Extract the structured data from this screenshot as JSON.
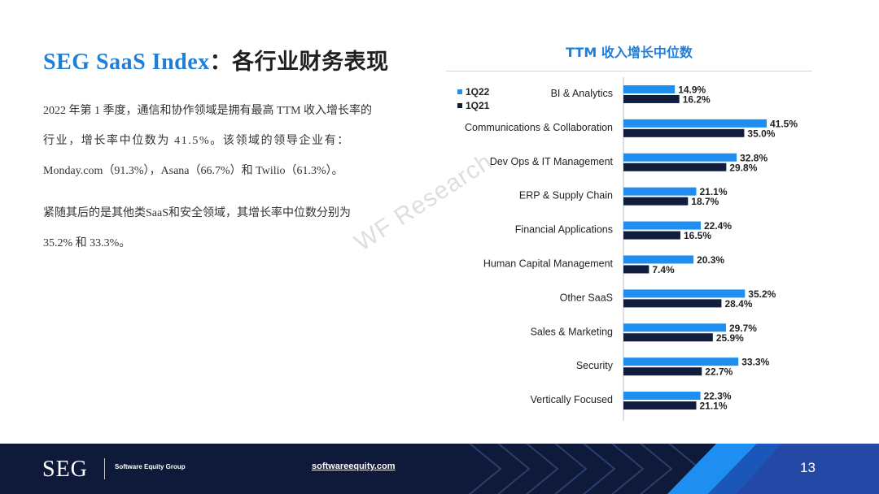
{
  "slide": {
    "title_brand": "SEG SaaS Index",
    "title_rest": "：各行业财务表现",
    "para1_line1": "2022 年第 1 季度，通信和协作领域是拥有最高 TTM 收入增长率的",
    "para1_line2": "行业，增长率中位数为 41.5%。该领域的领导企业有：",
    "para1_line3": "Monday.com（91.3%），Asana（66.7%）和 Twilio（61.3%）。",
    "para2_line1": "紧随其后的是其他类SaaS和安全领域，其增长率中位数分别为",
    "para2_line2": "35.2% 和 33.3%。",
    "watermark": "WF Research"
  },
  "footer": {
    "logo": "SEG",
    "company": "Software Equity Group",
    "url": "softwareequity.com",
    "page_number": "13"
  },
  "colors": {
    "accent": "#1f7fd8",
    "series_1q22": "#1f8ef1",
    "series_1q21": "#111d3d",
    "footer_bg": "#0f1a3a"
  },
  "chart_data": {
    "type": "bar",
    "orientation": "horizontal",
    "title": "TTM 收入增长中位数",
    "categories": [
      "BI & Analytics",
      "Communications & Collaboration",
      "Dev Ops & IT Management",
      "ERP & Supply Chain",
      "Financial Applications",
      "Human Capital Management",
      "Other SaaS",
      "Sales & Marketing",
      "Security",
      "Vertically Focused"
    ],
    "series": [
      {
        "name": "1Q22",
        "color": "#1f8ef1",
        "values": [
          14.9,
          41.5,
          32.8,
          21.1,
          22.4,
          20.3,
          35.2,
          29.7,
          33.3,
          22.3
        ],
        "labels": [
          "14.9%",
          "41.5%",
          "32.8%",
          "21.1%",
          "22.4%",
          "20.3%",
          "35.2%",
          "29.7%",
          "33.3%",
          "22.3%"
        ]
      },
      {
        "name": "1Q21",
        "color": "#111d3d",
        "values": [
          16.2,
          35.0,
          29.8,
          18.7,
          16.5,
          7.4,
          28.4,
          25.9,
          22.7,
          21.1
        ],
        "labels": [
          "16.2%",
          "35.0%",
          "29.8%",
          "18.7%",
          "16.5%",
          "7.4%",
          "28.4%",
          "25.9%",
          "22.7%",
          "21.1%"
        ]
      }
    ],
    "xlim": [
      0,
      45
    ],
    "legend": "top-left",
    "grid": false
  }
}
